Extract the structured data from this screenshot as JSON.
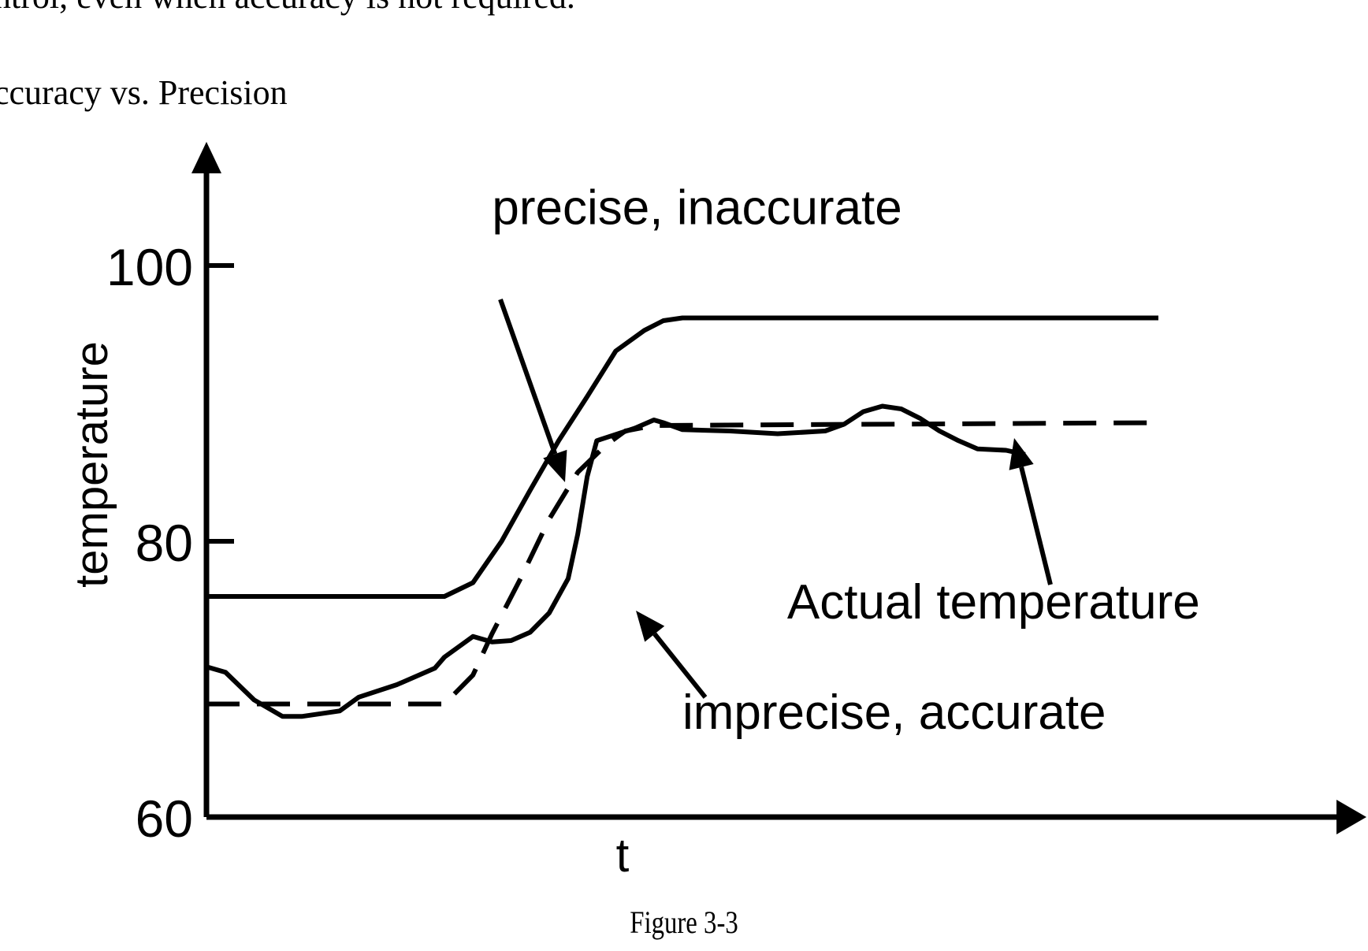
{
  "document": {
    "top_line": "ntrol, even when accuracy is not required.",
    "section_heading": "ccuracy vs. Precision",
    "figure_caption": "Figure 3-3"
  },
  "chart_data": {
    "type": "line",
    "title": "",
    "xlabel": "t",
    "ylabel": "temperature",
    "ylim": [
      60,
      108
    ],
    "xlim": [
      0,
      100
    ],
    "yticks": [
      60,
      80,
      100
    ],
    "grid": false,
    "legend": "none",
    "series": [
      {
        "style": "solid",
        "points": [
          [
            0,
            76
          ],
          [
            25,
            76
          ],
          [
            28,
            77
          ],
          [
            31,
            80
          ],
          [
            34,
            83.7
          ],
          [
            37,
            87.3
          ],
          [
            40,
            90.5
          ],
          [
            43,
            93.8
          ],
          [
            46,
            95.3
          ],
          [
            48,
            96
          ],
          [
            50,
            96.2
          ],
          [
            100,
            96.2
          ]
        ]
      },
      {
        "style": "dashed",
        "points": [
          [
            0,
            68.2
          ],
          [
            25,
            68.2
          ],
          [
            28,
            70.3
          ],
          [
            30,
            73.3
          ],
          [
            33,
            77.3
          ],
          [
            36,
            81.6
          ],
          [
            39,
            85
          ],
          [
            42,
            87
          ],
          [
            44,
            88
          ],
          [
            47,
            88.4
          ],
          [
            100,
            88.6
          ]
        ]
      },
      {
        "style": "solid",
        "points": [
          [
            0,
            70.9
          ],
          [
            2,
            70.5
          ],
          [
            5,
            68.5
          ],
          [
            8,
            67.3
          ],
          [
            10,
            67.3
          ],
          [
            14,
            67.7
          ],
          [
            16,
            68.7
          ],
          [
            20,
            69.6
          ],
          [
            24,
            70.8
          ],
          [
            25,
            71.6
          ],
          [
            27,
            72.6
          ],
          [
            28,
            73.1
          ],
          [
            30,
            72.7
          ],
          [
            32,
            72.8
          ],
          [
            34,
            73.4
          ],
          [
            36,
            74.8
          ],
          [
            38,
            77.3
          ],
          [
            39,
            80.5
          ],
          [
            40,
            84.7
          ],
          [
            41,
            87.3
          ],
          [
            45,
            88.2
          ],
          [
            47,
            88.8
          ],
          [
            48,
            88.6
          ],
          [
            50,
            88.1
          ],
          [
            55,
            88
          ],
          [
            60,
            87.8
          ],
          [
            65,
            88
          ],
          [
            67,
            88.5
          ],
          [
            69,
            89.4
          ],
          [
            71,
            89.8
          ],
          [
            73,
            89.6
          ],
          [
            75,
            88.9
          ],
          [
            77,
            88
          ],
          [
            79,
            87.3
          ],
          [
            81,
            86.7
          ],
          [
            84,
            86.6
          ],
          [
            86,
            86.3
          ]
        ]
      }
    ],
    "annotations": [
      {
        "text": "precise, inaccurate",
        "x": 30,
        "y": 103
      },
      {
        "text": "Actual temperature",
        "x": 61,
        "y": 74.4
      },
      {
        "text": "imprecise, accurate",
        "x": 50,
        "y": 66.4
      }
    ],
    "colors": {
      "line": "#000000",
      "background": "#ffffff"
    }
  }
}
